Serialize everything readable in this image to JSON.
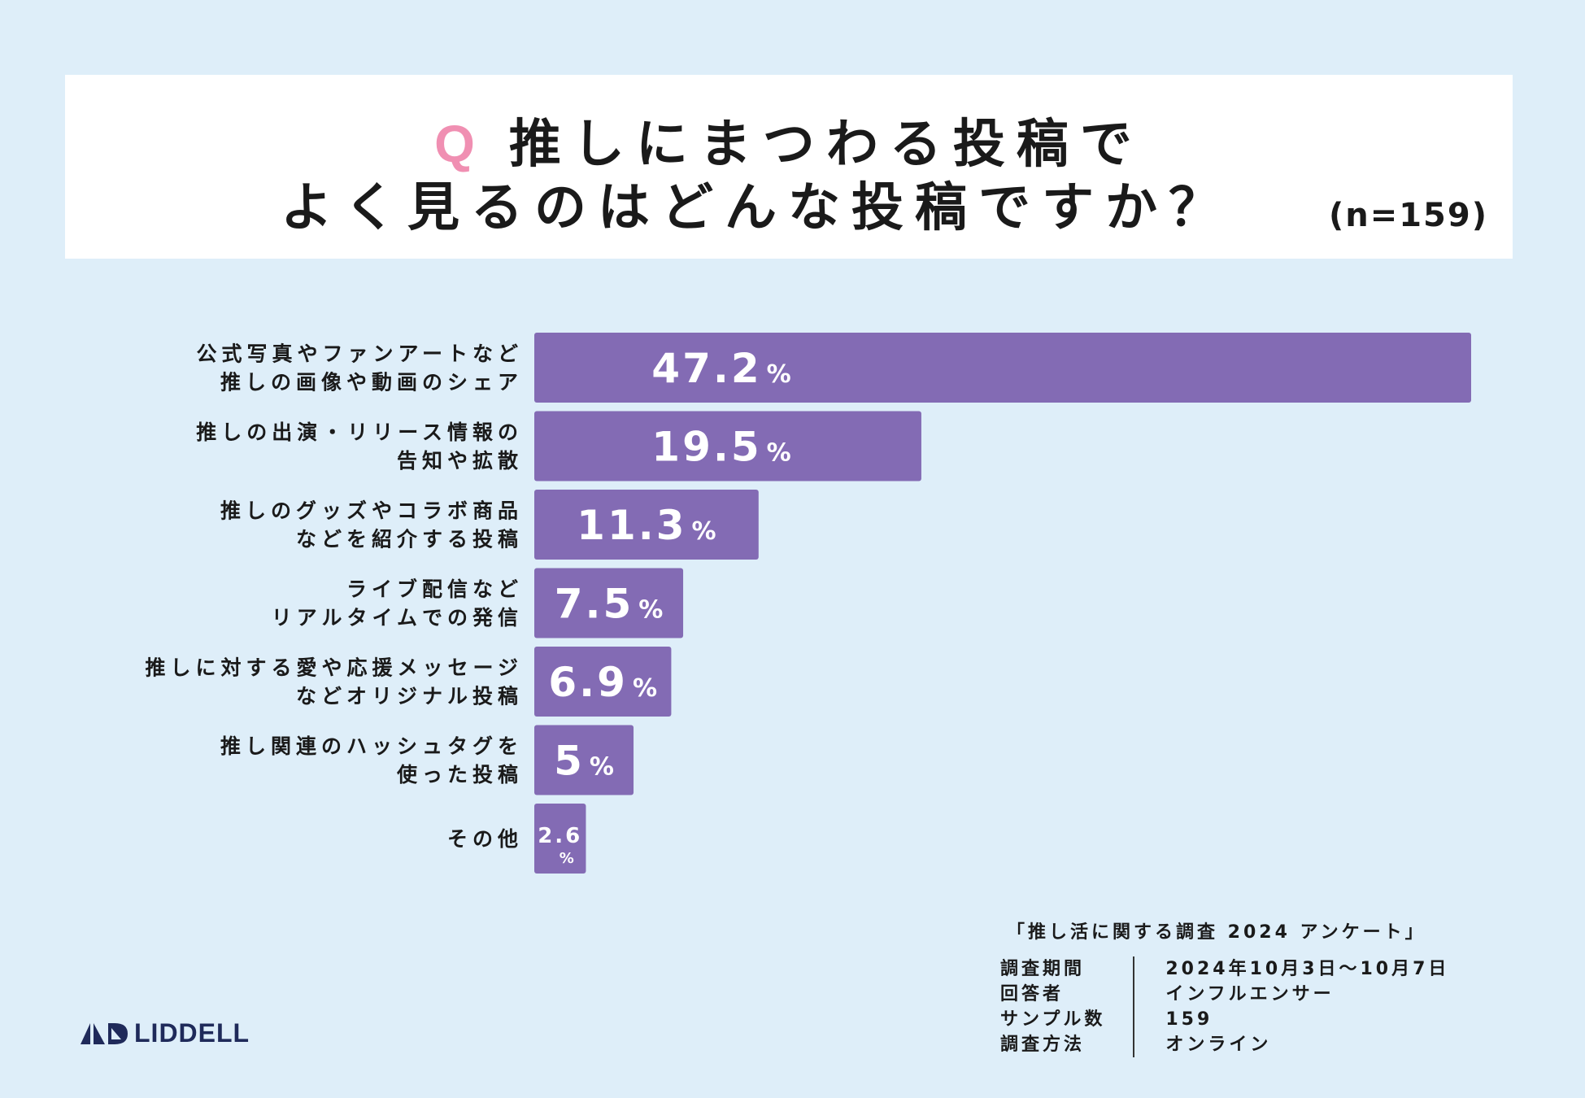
{
  "title": {
    "q": "Q",
    "line1": "推しにまつわる投稿で",
    "line2": "よく見るのはどんな投稿ですか？",
    "n": "(n=159)"
  },
  "colors": {
    "background": "#deeef9",
    "bar": "#836bb4",
    "accent": "#f08fb2"
  },
  "chart_data": {
    "type": "bar",
    "orientation": "horizontal",
    "categories": [
      [
        "公式写真やファンアートなど",
        "推しの画像や動画のシェア"
      ],
      [
        "推しの出演・リリース情報の",
        "告知や拡散"
      ],
      [
        "推しのグッズやコラボ商品",
        "などを紹介する投稿"
      ],
      [
        "ライブ配信など",
        "リアルタイムでの発信"
      ],
      [
        "推しに対する愛や応援メッセージ",
        "などオリジナル投稿"
      ],
      [
        "推し関連のハッシュタグを",
        "使った投稿"
      ],
      [
        "その他"
      ]
    ],
    "values": [
      47.2,
      19.5,
      11.3,
      7.5,
      6.9,
      5,
      2.6
    ],
    "value_labels": [
      "47.2",
      "19.5",
      "11.3",
      "7.5",
      "6.9",
      "5",
      "2.6"
    ],
    "unit": "%",
    "xlim": [
      0,
      47.2
    ]
  },
  "footer": {
    "survey_name": "「推し活に関する調査 2024 アンケート」",
    "rows": [
      {
        "key": "調査期間",
        "value": "2024年10月3日〜10月7日"
      },
      {
        "key": "回答者",
        "value": "インフルエンサー"
      },
      {
        "key": "サンプル数",
        "value": "159"
      },
      {
        "key": "調査方法",
        "value": "オンライン"
      }
    ]
  },
  "logo": {
    "text": "LIDDELL",
    "icon": "liddell-logo-icon"
  }
}
